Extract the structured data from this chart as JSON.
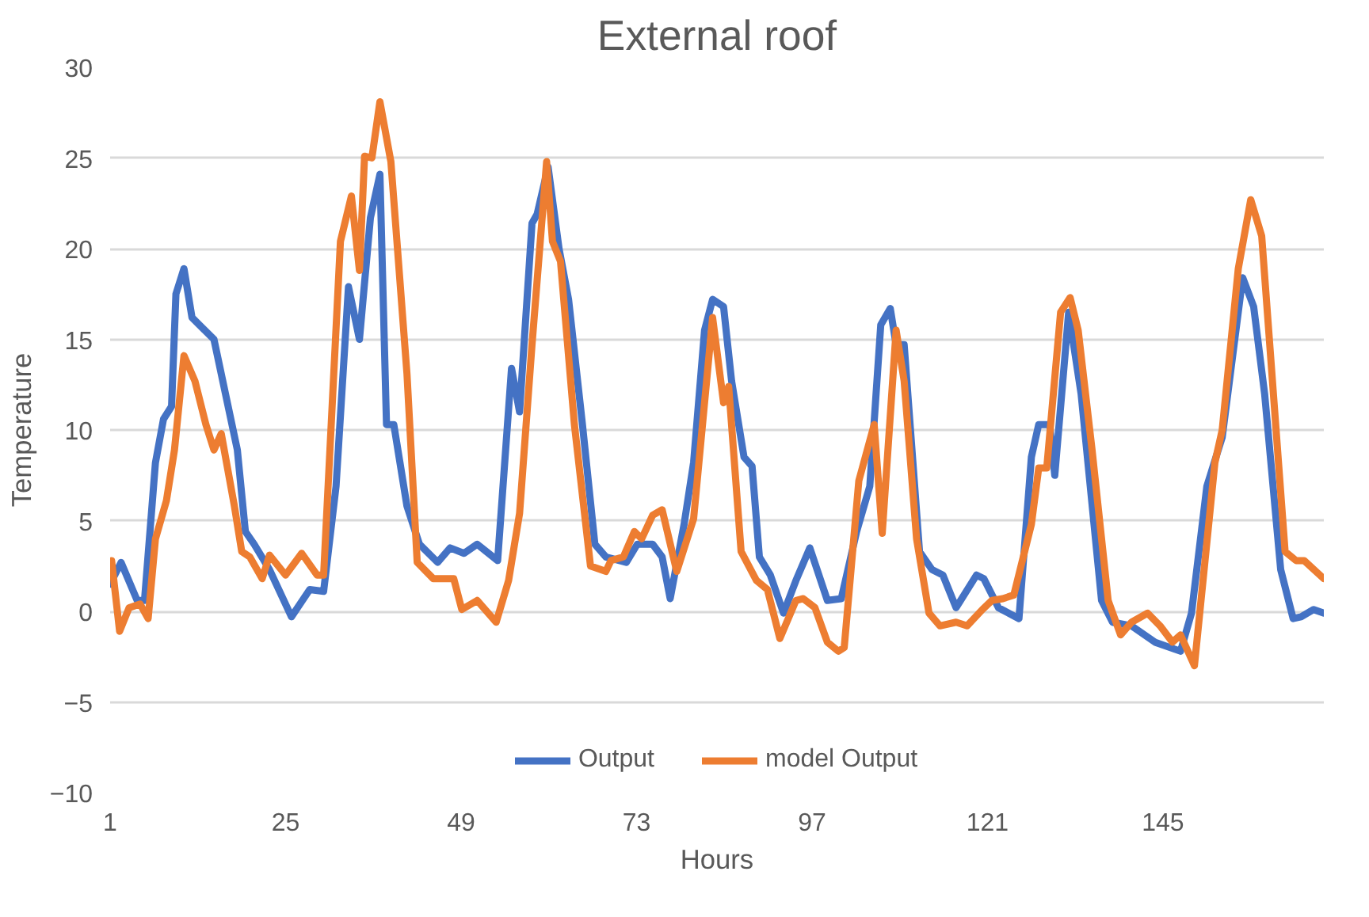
{
  "chart_data": {
    "type": "line",
    "title": "External roof",
    "xlabel": "Hours",
    "ylabel": "Temperature",
    "xlim": [
      1,
      167
    ],
    "xticks": [
      1,
      25,
      49,
      73,
      97,
      121,
      145
    ],
    "ylim": [
      -10,
      30
    ],
    "yticks": [
      -10,
      -5,
      0,
      5,
      10,
      15,
      20,
      25,
      30
    ],
    "grid": "y",
    "legend": "bottom",
    "line_style": "solid",
    "marker": "none",
    "series": [
      {
        "name": "Output",
        "color": "#4472c4",
        "x": [
          1,
          2.5,
          4.7,
          5.7,
          7.2,
          8.3,
          9.4,
          10,
          11.1,
          12.2,
          15.2,
          18.4,
          19.5,
          20.7,
          22.8,
          25.8,
          28.3,
          30.2,
          31.9,
          33.6,
          35.1,
          36.6,
          37.9,
          38.8,
          39.8,
          41.6,
          43.3,
          45.8,
          47.5,
          49.4,
          51.2,
          54,
          55.9,
          57,
          58.7,
          59.4,
          60.9,
          62.4,
          63.7,
          65.6,
          67.3,
          68.8,
          71.6,
          73.1,
          75.2,
          76.5,
          77.6,
          79.5,
          80.8,
          82.3,
          83.4,
          84.9,
          86,
          87.7,
          88.8,
          89.8,
          91.3,
          93.1,
          94.8,
          96.7,
          99.1,
          101,
          103.1,
          104.9,
          106.4,
          107.7,
          108.5,
          109.6,
          111.7,
          113.4,
          114.9,
          116.7,
          119.5,
          120.5,
          122.5,
          125.3,
          127,
          128,
          129.5,
          130.2,
          132.1,
          133.8,
          136.6,
          138.1,
          140.7,
          143.9,
          147.4,
          148.9,
          151,
          153.1,
          155.9,
          157.4,
          158.9,
          161.1,
          162.8,
          163.9,
          165.6,
          167
        ],
        "values": [
          1.5,
          2.7,
          0.6,
          0.6,
          8.2,
          10.6,
          11.3,
          17.5,
          18.9,
          16.2,
          15,
          8.9,
          4.4,
          3.7,
          2.3,
          -0.3,
          1.2,
          1.1,
          6.9,
          17.9,
          15,
          21.7,
          24.1,
          10.3,
          10.3,
          5.8,
          3.7,
          2.7,
          3.5,
          3.2,
          3.7,
          2.8,
          13.4,
          11,
          21.4,
          21.9,
          24.5,
          20,
          17.2,
          10.3,
          3.7,
          3,
          2.7,
          3.7,
          3.7,
          3,
          0.7,
          4.8,
          8.2,
          15.5,
          17.2,
          16.8,
          12.7,
          8.5,
          8,
          3,
          2,
          -0.1,
          1.7,
          3.5,
          0.6,
          0.7,
          4.4,
          6.9,
          15.8,
          16.7,
          14.7,
          14.7,
          3.3,
          2.3,
          2,
          0.2,
          2,
          1.8,
          0.2,
          -0.4,
          8.5,
          10.3,
          10.3,
          7.5,
          16.5,
          12,
          0.6,
          -0.6,
          -0.8,
          -1.7,
          -2.2,
          -0.1,
          6.9,
          9.6,
          18.4,
          16.8,
          12,
          2.3,
          -0.4,
          -0.3,
          0.1,
          -0.1
        ]
      },
      {
        "name": "model Output",
        "color": "#ed7d31",
        "x": [
          1.2,
          2.3,
          3.6,
          5.1,
          6.2,
          7.2,
          8.7,
          9.8,
          11.1,
          12.6,
          14.1,
          15.2,
          16.2,
          18,
          19,
          20.1,
          21.8,
          22.8,
          25,
          27.2,
          29.3,
          30.2,
          32.5,
          34,
          35.1,
          35.8,
          36.8,
          37.9,
          39.4,
          41.6,
          43,
          45.2,
          48,
          49.1,
          51.2,
          53.8,
          55.5,
          57,
          58.7,
          60.7,
          61.5,
          62.6,
          64.5,
          66.7,
          68.8,
          69.5,
          71.2,
          72.7,
          73.7,
          75.2,
          76.5,
          78.5,
          80.8,
          83.4,
          84.9,
          85.6,
          87.3,
          89.4,
          90.9,
          92.6,
          94.8,
          95.8,
          97.4,
          99.1,
          100.6,
          101.4,
          103.4,
          105.5,
          106.6,
          108.5,
          109.6,
          111.3,
          113,
          114.5,
          116.7,
          118.2,
          120.3,
          121.6,
          123.1,
          124.6,
          127,
          128,
          129.1,
          131,
          132.3,
          133.4,
          135.3,
          137.5,
          139.2,
          140.7,
          142.9,
          144.6,
          146.3,
          147.4,
          149.3,
          152.1,
          153.1,
          155.3,
          157,
          158.5,
          161.7,
          163.2,
          164.3,
          167
        ],
        "values": [
          2.8,
          -1.1,
          0.2,
          0.4,
          -0.4,
          4,
          6.1,
          8.9,
          14.1,
          12.7,
          10.3,
          8.9,
          9.8,
          5.8,
          3.3,
          3,
          1.8,
          3.1,
          2,
          3.2,
          2,
          2,
          20.4,
          22.9,
          18.8,
          25.1,
          25,
          28.1,
          24.8,
          13.1,
          2.7,
          1.8,
          1.8,
          0.1,
          0.6,
          -0.6,
          1.7,
          5.4,
          14.7,
          24.8,
          20.4,
          19.3,
          10.3,
          2.5,
          2.2,
          2.8,
          3,
          4.4,
          4,
          5.3,
          5.6,
          2.2,
          5.1,
          16.2,
          11.5,
          12.4,
          3.3,
          1.7,
          1.2,
          -1.5,
          0.6,
          0.7,
          0.2,
          -1.7,
          -2.2,
          -2,
          7.2,
          10.3,
          4.3,
          15.5,
          12.7,
          4,
          -0.1,
          -0.8,
          -0.6,
          -0.8,
          0.1,
          0.6,
          0.7,
          0.9,
          4.8,
          7.9,
          7.9,
          16.5,
          17.3,
          15.5,
          8.9,
          0.6,
          -1.3,
          -0.6,
          -0.1,
          -0.8,
          -1.7,
          -1.3,
          -3,
          8.2,
          10,
          18.9,
          22.7,
          20.7,
          3.3,
          2.8,
          2.8,
          1.8
        ]
      }
    ]
  }
}
